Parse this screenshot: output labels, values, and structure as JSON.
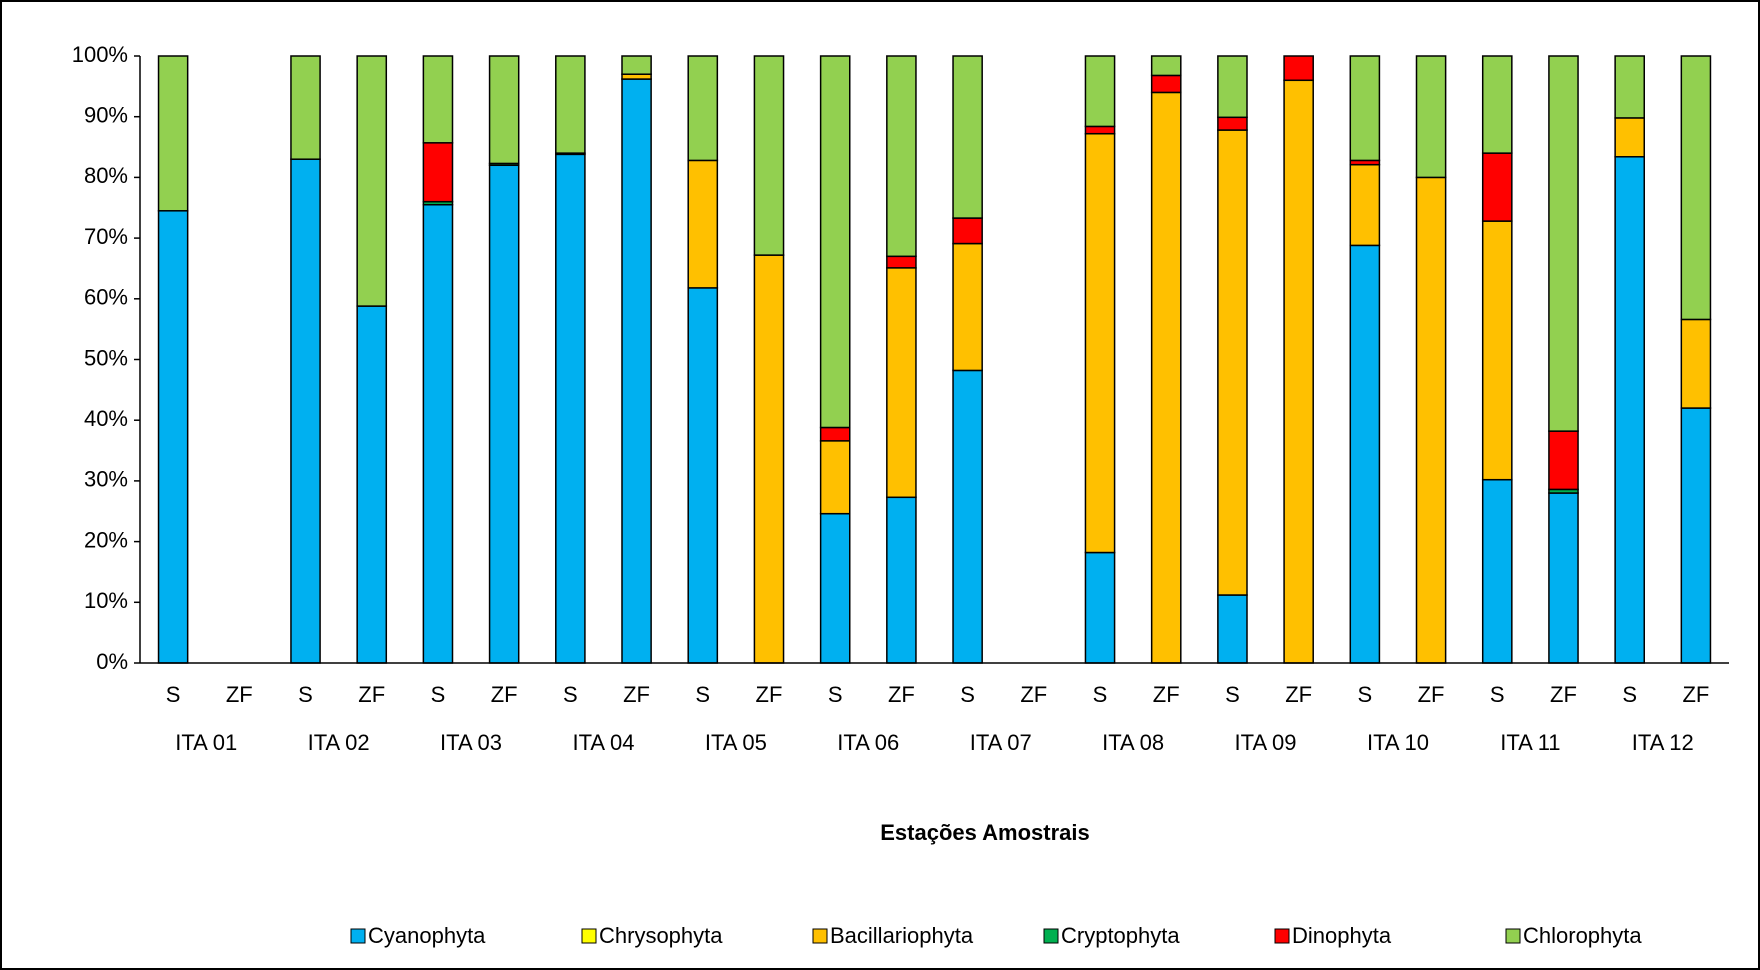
{
  "chart_data": {
    "type": "stacked_bar",
    "x_label": "Estações Amostrais",
    "categories": [
      "S",
      "ZF",
      "S",
      "ZF",
      "S",
      "ZF",
      "S",
      "ZF",
      "S",
      "ZF",
      "S",
      "ZF",
      "S",
      "ZF",
      "S",
      "ZF",
      "S",
      "ZF",
      "S",
      "ZF",
      "S",
      "ZF",
      "S",
      "ZF"
    ],
    "groups": [
      "ITA 01",
      "ITA 02",
      "ITA 03",
      "ITA 04",
      "ITA 05",
      "ITA 06",
      "ITA 07",
      "ITA 08",
      "ITA 09",
      "ITA 10",
      "ITA 11",
      "ITA 12"
    ],
    "ylim": [
      0,
      100
    ],
    "yticks": [
      {
        "value": 0,
        "label": "0%"
      },
      {
        "value": 10,
        "label": "10%"
      },
      {
        "value": 20,
        "label": "20%"
      },
      {
        "value": 30,
        "label": "30%"
      },
      {
        "value": 40,
        "label": "40%"
      },
      {
        "value": 50,
        "label": "50%"
      },
      {
        "value": 60,
        "label": "60%"
      },
      {
        "value": 70,
        "label": "70%"
      },
      {
        "value": 80,
        "label": "80%"
      },
      {
        "value": 90,
        "label": "90%"
      },
      {
        "value": 100,
        "label": "100%"
      }
    ],
    "legend": "bottom",
    "series": [
      {
        "name": "Cyanophyta",
        "color": "#00b0f0",
        "values": [
          74.5,
          0,
          83,
          58.8,
          75.5,
          82,
          83.8,
          96.2,
          61.8,
          0,
          24.6,
          27.3,
          48.2,
          0,
          18.2,
          0,
          11.2,
          0,
          68.8,
          0,
          30.2,
          28,
          83.4,
          42
        ]
      },
      {
        "name": "Chrysophyta",
        "color": "#ffff00",
        "values": [
          0,
          0,
          0,
          0,
          0,
          0,
          0,
          0,
          0,
          0,
          0,
          0,
          0,
          0,
          0,
          0,
          0,
          0,
          0,
          0,
          0,
          0,
          0,
          0
        ]
      },
      {
        "name": "Bacillariophyta",
        "color": "#ffc000",
        "values": [
          0,
          0,
          0,
          0,
          0,
          0,
          0.2,
          0.8,
          21,
          67.2,
          12,
          37.8,
          20.9,
          0,
          69,
          94,
          76.6,
          96,
          13.3,
          80,
          42.6,
          0,
          6.4,
          14.6
        ]
      },
      {
        "name": "Cryptophyta",
        "color": "#00b050",
        "values": [
          0,
          0,
          0,
          0,
          0.5,
          0.3,
          0,
          0,
          0,
          0,
          0,
          0,
          0,
          0,
          0,
          0,
          0,
          0,
          0,
          0,
          0,
          0.6,
          0,
          0
        ]
      },
      {
        "name": "Dinophyta",
        "color": "#ff0000",
        "values": [
          0,
          0,
          0,
          0,
          9.7,
          0,
          0,
          0,
          0,
          0,
          2.2,
          1.9,
          4.2,
          0,
          1.2,
          2.8,
          2.1,
          4,
          0.7,
          0,
          11.2,
          9.6,
          0,
          0
        ]
      },
      {
        "name": "Chlorophyta",
        "color": "#92d050",
        "values": [
          25.5,
          0,
          17,
          41.2,
          14.3,
          17.7,
          16,
          3,
          17.2,
          32.8,
          61.2,
          33,
          26.7,
          0,
          11.6,
          3.2,
          10.1,
          0,
          17.2,
          20,
          16,
          61.8,
          10.2,
          43.4
        ]
      }
    ]
  }
}
